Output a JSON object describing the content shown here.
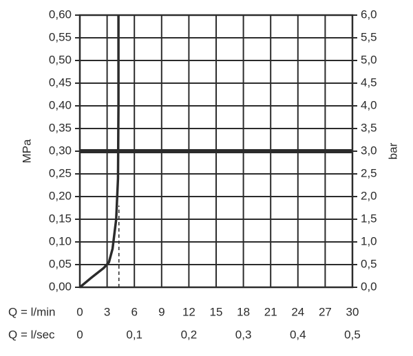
{
  "chart_data": {
    "type": "line",
    "ylabel": "MPa",
    "y2label": "bar",
    "xlabel": "Q = l/min",
    "x2label": "Q = l/sec",
    "xlim": [
      0,
      30
    ],
    "xticks": [
      0,
      3,
      6,
      9,
      12,
      15,
      18,
      21,
      24,
      27,
      30
    ],
    "x2lim": [
      0,
      0.5
    ],
    "x2ticks": [
      0,
      {
        "value": 0.1,
        "label": "0,1"
      },
      {
        "value": 0.2,
        "label": "0,2"
      },
      {
        "value": 0.3,
        "label": "0,3"
      },
      {
        "value": 0.4,
        "label": "0,4"
      },
      {
        "value": 0.5,
        "label": "0,5"
      }
    ],
    "ylim": [
      0,
      0.6
    ],
    "yticks": [
      {
        "value": 0,
        "label": "0,00"
      },
      {
        "value": 0.05,
        "label": "0,05"
      },
      {
        "value": 0.1,
        "label": "0,10"
      },
      {
        "value": 0.15,
        "label": "0,15"
      },
      {
        "value": 0.2,
        "label": "0,20"
      },
      {
        "value": 0.25,
        "label": "0,25"
      },
      {
        "value": 0.3,
        "label": "0,30"
      },
      {
        "value": 0.35,
        "label": "0,35"
      },
      {
        "value": 0.4,
        "label": "0,40"
      },
      {
        "value": 0.45,
        "label": "0,45"
      },
      {
        "value": 0.5,
        "label": "0,50"
      },
      {
        "value": 0.55,
        "label": "0,55"
      },
      {
        "value": 0.6,
        "label": "0,60"
      }
    ],
    "y2lim": [
      0,
      6
    ],
    "y2ticks": [
      {
        "value": 0,
        "label": "0,0"
      },
      {
        "value": 0.5,
        "label": "0,5"
      },
      {
        "value": 1,
        "label": "1,0"
      },
      {
        "value": 1.5,
        "label": "1,5"
      },
      {
        "value": 2,
        "label": "2,0"
      },
      {
        "value": 2.5,
        "label": "2,5"
      },
      {
        "value": 3,
        "label": "3,0"
      },
      {
        "value": 3.5,
        "label": "3,5"
      },
      {
        "value": 4,
        "label": "4,0"
      },
      {
        "value": 4.5,
        "label": "4,5"
      },
      {
        "value": 5,
        "label": "5,0"
      },
      {
        "value": 5.5,
        "label": "5,5"
      },
      {
        "value": 6,
        "label": "6,0"
      }
    ],
    "grid": true,
    "series": [
      {
        "color": "#2b2b2b",
        "x": [
          0,
          1.2,
          2.6,
          3.2,
          3.6,
          4.0,
          4.2,
          4.25,
          4.25
        ],
        "values": [
          0,
          0.02,
          0.042,
          0.055,
          0.085,
          0.15,
          0.24,
          0.4,
          0.6
        ]
      }
    ],
    "reference_line": {
      "value": 0.3,
      "color": "#2b2b2b"
    },
    "dashed_line": {
      "x": 4.3,
      "y": [
        0,
        0.18
      ],
      "color": "#2b2b2b"
    }
  }
}
